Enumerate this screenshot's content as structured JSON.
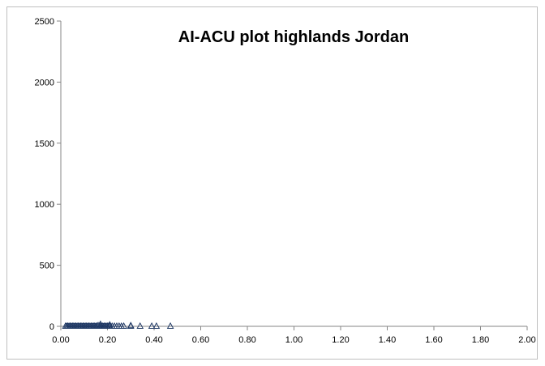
{
  "chart_data": {
    "type": "scatter",
    "title": "AI-ACU plot highlands Jordan",
    "xlabel": "",
    "ylabel": "",
    "xlim": [
      0,
      2
    ],
    "ylim": [
      0,
      2500
    ],
    "x_ticks": [
      "0.00",
      "0.20",
      "0.40",
      "0.60",
      "0.80",
      "1.00",
      "1.20",
      "1.40",
      "1.60",
      "1.80",
      "2.00"
    ],
    "y_ticks": [
      "0",
      "500",
      "1000",
      "1500",
      "2000",
      "2500"
    ],
    "grid": false,
    "legend": "none",
    "marker": "open-triangle",
    "marker_color": "#1f3864",
    "series": [
      {
        "points": [
          [
            0.02,
            0
          ],
          [
            0.025,
            0
          ],
          [
            0.03,
            0
          ],
          [
            0.035,
            0
          ],
          [
            0.04,
            0
          ],
          [
            0.045,
            0
          ],
          [
            0.05,
            0
          ],
          [
            0.055,
            0
          ],
          [
            0.06,
            0
          ],
          [
            0.065,
            0
          ],
          [
            0.07,
            0
          ],
          [
            0.075,
            0
          ],
          [
            0.08,
            0
          ],
          [
            0.085,
            0
          ],
          [
            0.09,
            0
          ],
          [
            0.095,
            0
          ],
          [
            0.1,
            0
          ],
          [
            0.105,
            0
          ],
          [
            0.11,
            0
          ],
          [
            0.115,
            0
          ],
          [
            0.12,
            0
          ],
          [
            0.125,
            0
          ],
          [
            0.13,
            0
          ],
          [
            0.135,
            0
          ],
          [
            0.14,
            0
          ],
          [
            0.145,
            0
          ],
          [
            0.15,
            0
          ],
          [
            0.155,
            0
          ],
          [
            0.16,
            5
          ],
          [
            0.165,
            0
          ],
          [
            0.17,
            0
          ],
          [
            0.17,
            15
          ],
          [
            0.175,
            0
          ],
          [
            0.18,
            0
          ],
          [
            0.185,
            0
          ],
          [
            0.19,
            0
          ],
          [
            0.195,
            0
          ],
          [
            0.2,
            0
          ],
          [
            0.205,
            0
          ],
          [
            0.21,
            0
          ],
          [
            0.21,
            10
          ],
          [
            0.22,
            0
          ],
          [
            0.23,
            0
          ],
          [
            0.24,
            0
          ],
          [
            0.25,
            0
          ],
          [
            0.26,
            0
          ],
          [
            0.27,
            0
          ],
          [
            0.3,
            0
          ],
          [
            0.3,
            5
          ],
          [
            0.34,
            0
          ],
          [
            0.39,
            0
          ],
          [
            0.41,
            0
          ],
          [
            0.47,
            0
          ]
        ]
      }
    ]
  }
}
